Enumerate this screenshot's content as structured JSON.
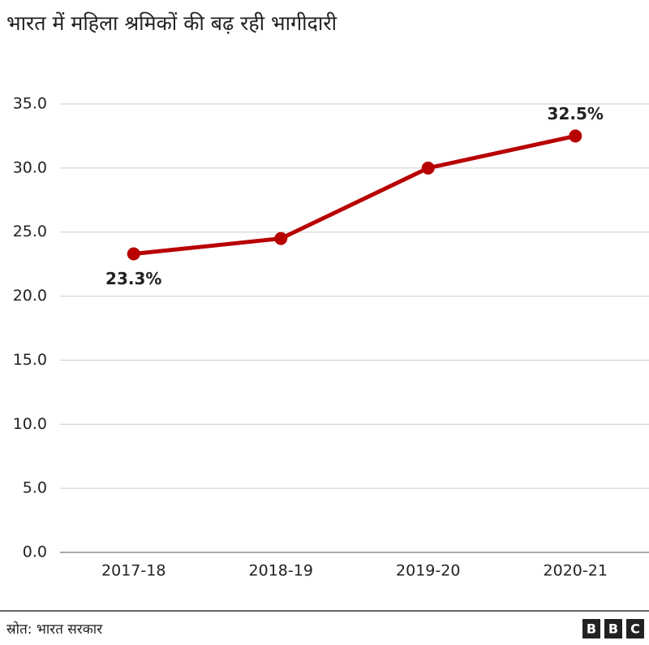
{
  "chart_data": {
    "type": "line",
    "title": "भारत में महिला श्रमिकों की बढ़ रही भागीदारी",
    "categories": [
      "2017-18",
      "2018-19",
      "2019-20",
      "2020-21"
    ],
    "series": [
      {
        "color": "#b80000",
        "values": [
          23.3,
          24.5,
          30.0,
          32.5
        ],
        "value_labels": [
          "23.3%",
          null,
          null,
          "32.5%"
        ]
      }
    ],
    "ylim": [
      0,
      35
    ],
    "yticks": [
      {
        "value": 0,
        "label": "0.0"
      },
      {
        "value": 5,
        "label": "5.0"
      },
      {
        "value": 10,
        "label": "10.0"
      },
      {
        "value": 15,
        "label": "15.0"
      },
      {
        "value": 20,
        "label": "20.0"
      },
      {
        "value": 25,
        "label": "25.0"
      },
      {
        "value": 30,
        "label": "30.0"
      },
      {
        "value": 35,
        "label": "35.0"
      }
    ],
    "grid": true,
    "source": "स्रोत: भारत सरकार",
    "logo": [
      "B",
      "B",
      "C"
    ]
  }
}
